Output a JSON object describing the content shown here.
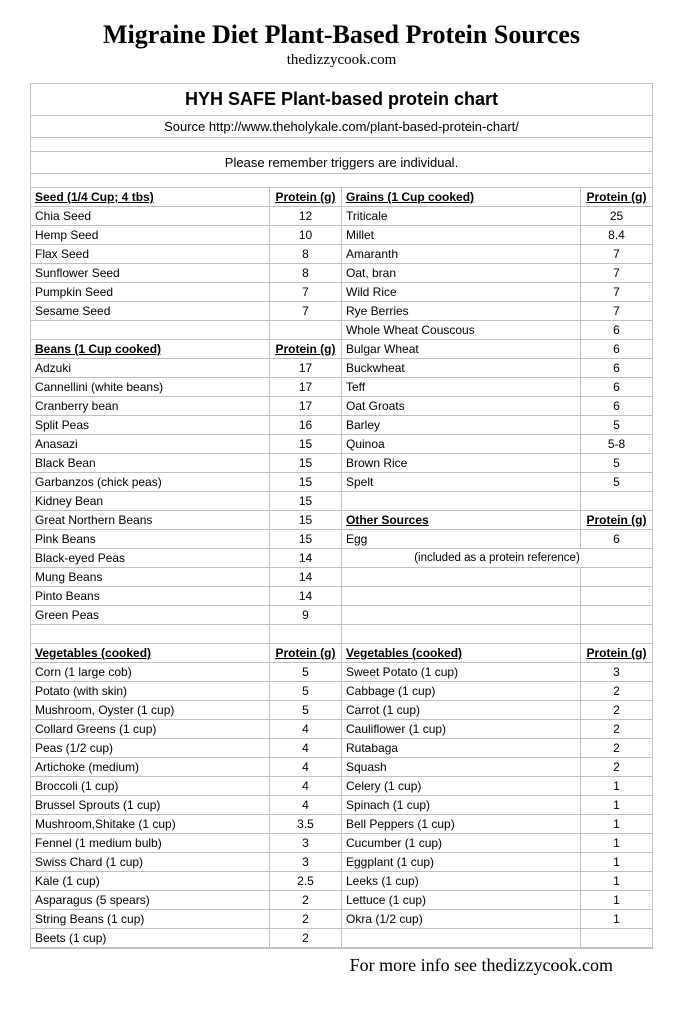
{
  "page_title": "Migraine Diet Plant-Based Protein Sources",
  "page_subtitle": "thedizzycook.com",
  "chart_title": "HYH SAFE Plant-based protein chart",
  "chart_source": "Source http://www.theholykale.com/plant-based-protein-chart/",
  "chart_note": "Please remember triggers are individual.",
  "footer": "For more info see thedizzycook.com",
  "colors": {
    "background": "#ffffff",
    "border": "#c0c0c0",
    "text": "#000000"
  },
  "left_column": [
    {
      "type": "header",
      "name": "Seed (1/4 Cup; 4 tbs)",
      "val": "Protein (g)"
    },
    {
      "type": "data",
      "name": "Chia Seed",
      "val": "12"
    },
    {
      "type": "data",
      "name": "Hemp Seed",
      "val": "10"
    },
    {
      "type": "data",
      "name": "Flax Seed",
      "val": "8"
    },
    {
      "type": "data",
      "name": "Sunflower Seed",
      "val": "8"
    },
    {
      "type": "data",
      "name": "Pumpkin Seed",
      "val": "7"
    },
    {
      "type": "data",
      "name": "Sesame Seed",
      "val": "7"
    },
    {
      "type": "empty"
    },
    {
      "type": "header",
      "name": "Beans (1 Cup cooked)",
      "val": "Protein (g)"
    },
    {
      "type": "data",
      "name": "Adzuki",
      "val": "17"
    },
    {
      "type": "data",
      "name": "Cannellini (white beans)",
      "val": "17"
    },
    {
      "type": "data",
      "name": "Cranberry bean",
      "val": "17"
    },
    {
      "type": "data",
      "name": "Split Peas",
      "val": "16"
    },
    {
      "type": "data",
      "name": "Anasazi",
      "val": "15"
    },
    {
      "type": "data",
      "name": "Black Bean",
      "val": "15"
    },
    {
      "type": "data",
      "name": "Garbanzos (chick peas)",
      "val": "15"
    },
    {
      "type": "data",
      "name": "Kidney Bean",
      "val": "15"
    },
    {
      "type": "data",
      "name": "Great Northern Beans",
      "val": "15"
    },
    {
      "type": "data",
      "name": "Pink Beans",
      "val": "15"
    },
    {
      "type": "data",
      "name": "Black-eyed Peas",
      "val": "14"
    },
    {
      "type": "data",
      "name": "Mung Beans",
      "val": "14"
    },
    {
      "type": "data",
      "name": "Pinto Beans",
      "val": "14"
    },
    {
      "type": "data",
      "name": "Green Peas",
      "val": "9"
    },
    {
      "type": "empty"
    },
    {
      "type": "header",
      "name": "Vegetables (cooked)",
      "val": "Protein (g)"
    },
    {
      "type": "data",
      "name": "Corn (1 large cob)",
      "val": "5"
    },
    {
      "type": "data",
      "name": "Potato (with skin)",
      "val": "5"
    },
    {
      "type": "data",
      "name": "Mushroom, Oyster (1 cup)",
      "val": "5"
    },
    {
      "type": "data",
      "name": "Collard Greens (1 cup)",
      "val": "4"
    },
    {
      "type": "data",
      "name": "Peas (1/2 cup)",
      "val": "4"
    },
    {
      "type": "data",
      "name": "Artichoke (medium)",
      "val": "4"
    },
    {
      "type": "data",
      "name": "Broccoli (1 cup)",
      "val": "4"
    },
    {
      "type": "data",
      "name": "Brussel Sprouts (1 cup)",
      "val": "4"
    },
    {
      "type": "data",
      "name": "Mushroom,Shitake (1 cup)",
      "val": "3.5"
    },
    {
      "type": "data",
      "name": "Fennel (1 medium bulb)",
      "val": "3"
    },
    {
      "type": "data",
      "name": "Swiss Chard (1 cup)",
      "val": "3"
    },
    {
      "type": "data",
      "name": "Kale (1 cup)",
      "val": "2.5"
    },
    {
      "type": "data",
      "name": "Asparagus (5 spears)",
      "val": "2"
    },
    {
      "type": "data",
      "name": "String Beans (1 cup)",
      "val": "2"
    },
    {
      "type": "data",
      "name": "Beets (1 cup)",
      "val": "2"
    }
  ],
  "right_column": [
    {
      "type": "header",
      "name": "Grains (1 Cup cooked)",
      "val": "Protein (g)"
    },
    {
      "type": "data",
      "name": "Triticale",
      "val": "25"
    },
    {
      "type": "data",
      "name": "Millet",
      "val": "8.4"
    },
    {
      "type": "data",
      "name": "Amaranth",
      "val": "7"
    },
    {
      "type": "data",
      "name": "Oat, bran",
      "val": "7"
    },
    {
      "type": "data",
      "name": "Wild Rice",
      "val": "7"
    },
    {
      "type": "data",
      "name": "Rye Berries",
      "val": "7"
    },
    {
      "type": "data",
      "name": "Whole Wheat Couscous",
      "val": "6"
    },
    {
      "type": "data",
      "name": "Bulgar Wheat",
      "val": "6"
    },
    {
      "type": "data",
      "name": "Buckwheat",
      "val": "6"
    },
    {
      "type": "data",
      "name": "Teff",
      "val": "6"
    },
    {
      "type": "data",
      "name": "Oat Groats",
      "val": "6"
    },
    {
      "type": "data",
      "name": "Barley",
      "val": "5"
    },
    {
      "type": "data",
      "name": "Quinoa",
      "val": "5-8"
    },
    {
      "type": "data",
      "name": "Brown Rice",
      "val": "5"
    },
    {
      "type": "data",
      "name": "Spelt",
      "val": "5"
    },
    {
      "type": "empty"
    },
    {
      "type": "header",
      "name": "Other Sources",
      "val": "Protein (g)"
    },
    {
      "type": "data",
      "name": "Egg",
      "val": "6"
    },
    {
      "type": "note",
      "note": "(included as a protein reference)"
    },
    {
      "type": "empty"
    },
    {
      "type": "empty"
    },
    {
      "type": "empty"
    },
    {
      "type": "empty"
    },
    {
      "type": "header",
      "name": "Vegetables (cooked)",
      "val": "Protein (g)"
    },
    {
      "type": "data",
      "name": "Sweet Potato (1 cup)",
      "val": "3"
    },
    {
      "type": "data",
      "name": "Cabbage (1 cup)",
      "val": "2"
    },
    {
      "type": "data",
      "name": "Carrot (1 cup)",
      "val": "2"
    },
    {
      "type": "data",
      "name": "Cauliflower (1 cup)",
      "val": "2"
    },
    {
      "type": "data",
      "name": "Rutabaga",
      "val": "2"
    },
    {
      "type": "data",
      "name": "Squash",
      "val": "2"
    },
    {
      "type": "data",
      "name": "Celery (1 cup)",
      "val": "1"
    },
    {
      "type": "data",
      "name": "Spinach (1 cup)",
      "val": "1"
    },
    {
      "type": "data",
      "name": "Bell Peppers (1 cup)",
      "val": "1"
    },
    {
      "type": "data",
      "name": "Cucumber (1 cup)",
      "val": "1"
    },
    {
      "type": "data",
      "name": "Eggplant (1 cup)",
      "val": "1"
    },
    {
      "type": "data",
      "name": "Leeks (1 cup)",
      "val": "1"
    },
    {
      "type": "data",
      "name": "Lettuce (1 cup)",
      "val": "1"
    },
    {
      "type": "data",
      "name": "Okra (1/2 cup)",
      "val": "1"
    },
    {
      "type": "empty"
    }
  ]
}
